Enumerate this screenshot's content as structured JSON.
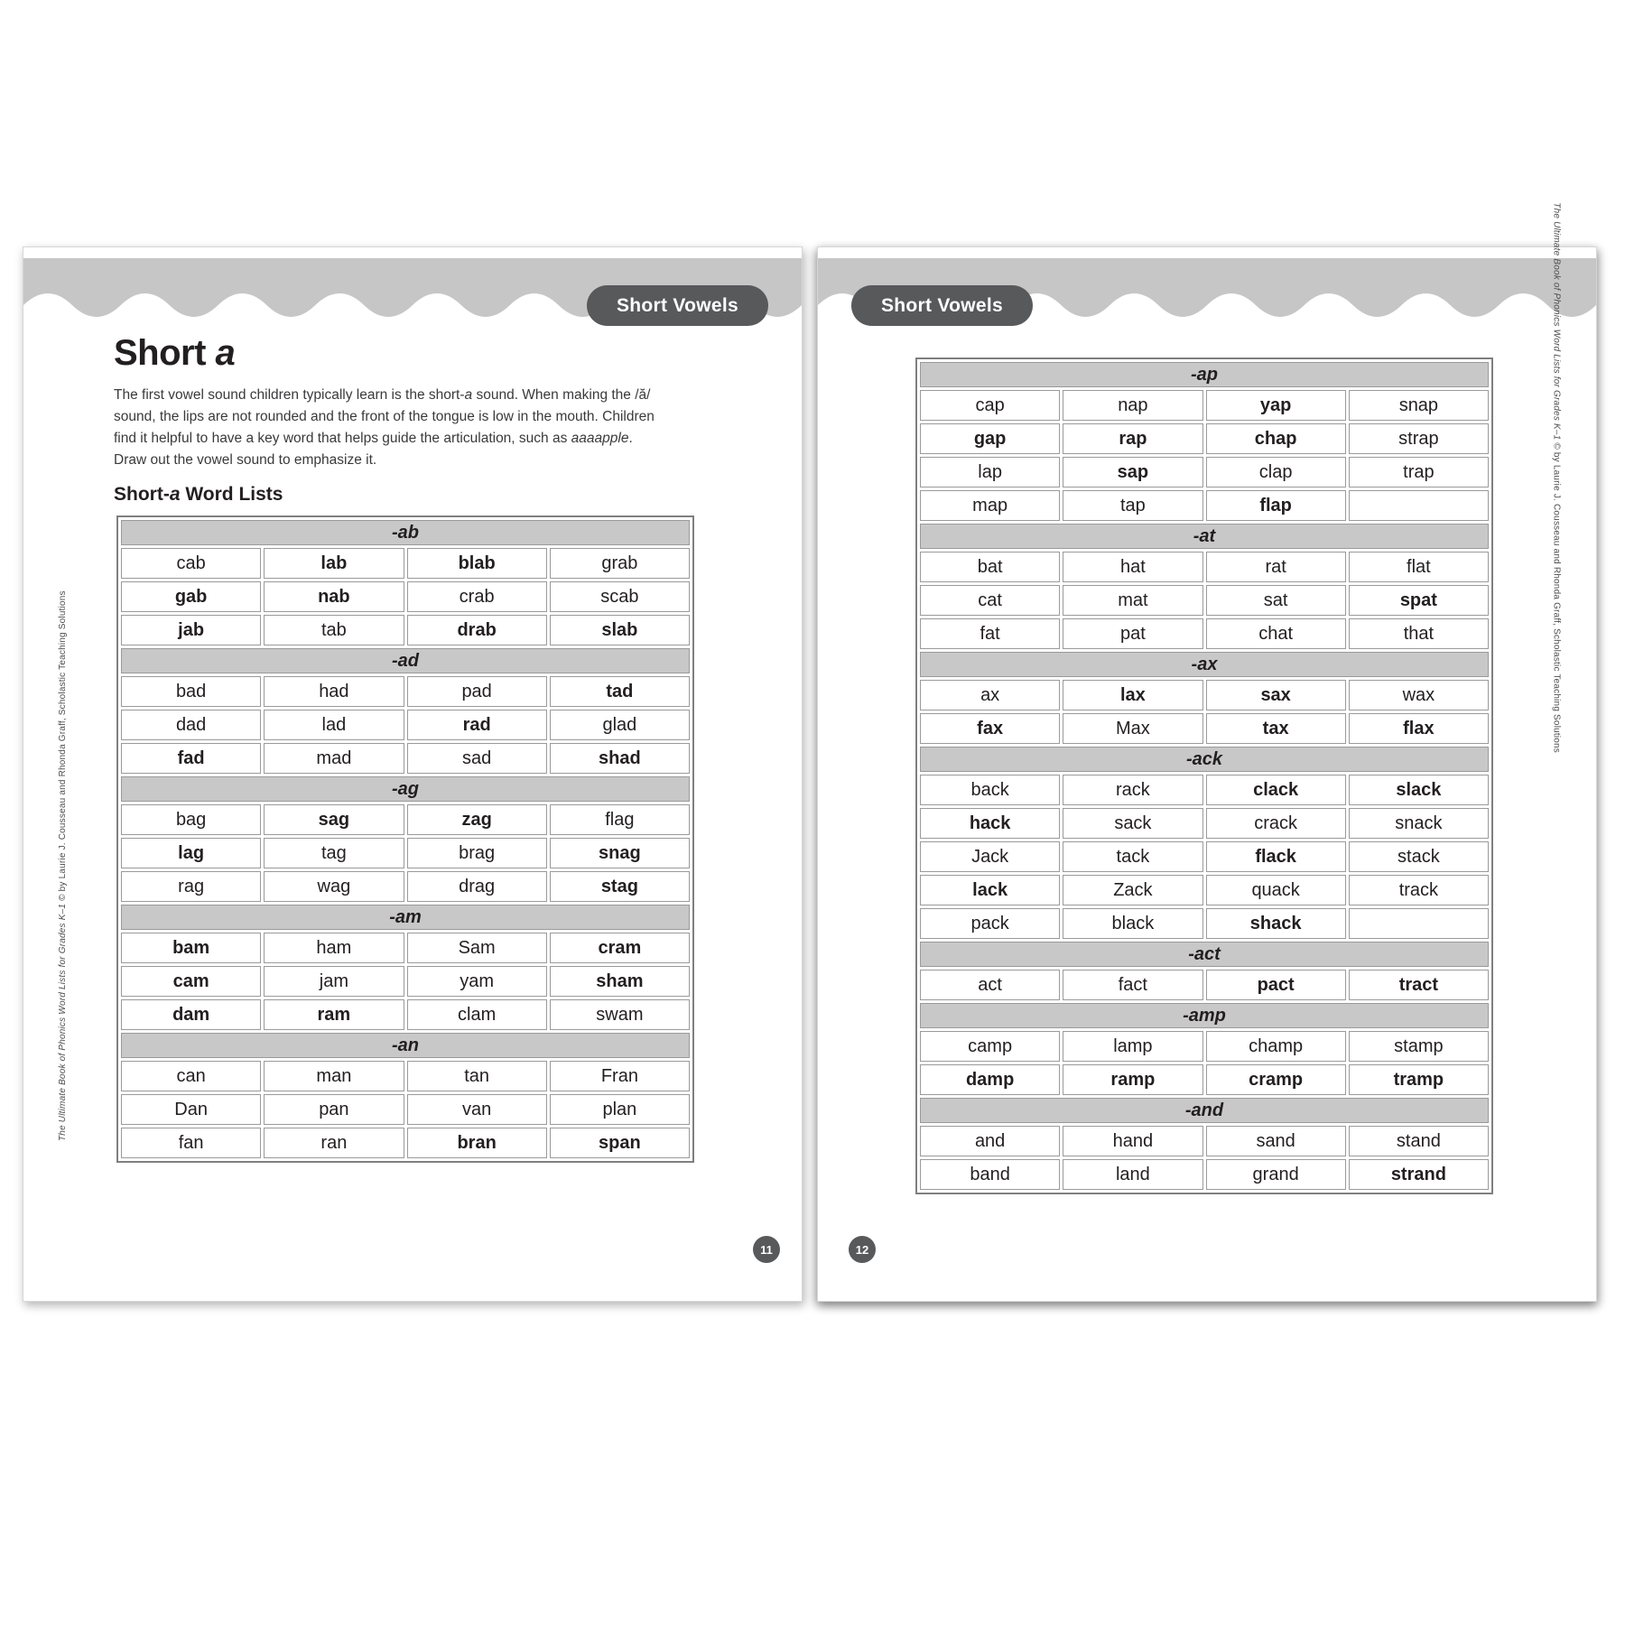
{
  "colors": {
    "band_gray": "#c6c6c6",
    "tab_dark_gray": "#58595b",
    "table_header_gray": "#c8c8c8",
    "table_border_gray": "#9a9a9a",
    "text_dark": "#231f20"
  },
  "left_page": {
    "tab_label": "Short Vowels",
    "page_number": "11",
    "heading": [
      {
        "t": "Short ",
        "i": 0
      },
      {
        "t": "a",
        "i": 1
      }
    ],
    "intro": [
      {
        "t": "The first vowel sound children typically learn is the short-",
        "i": 0
      },
      {
        "t": "a",
        "i": 1
      },
      {
        "t": " sound. When making the /ă/",
        "i": 0
      },
      {
        "br": true
      },
      {
        "t": "sound, the lips are not rounded and the front of the tongue is low in the mouth. Children",
        "i": 0
      },
      {
        "br": true
      },
      {
        "t": "find it helpful to have a key word that helps guide the articulation, such as ",
        "i": 0
      },
      {
        "t": "aaaapple",
        "i": 1
      },
      {
        "t": ".",
        "i": 0
      },
      {
        "br": true
      },
      {
        "t": "Draw out the vowel sound to emphasize it.",
        "i": 0
      }
    ],
    "subheading": [
      {
        "t": "Short-",
        "i": 0
      },
      {
        "t": "a",
        "i": 1
      },
      {
        "t": " Word Lists",
        "i": 0
      }
    ],
    "table": {
      "sections": [
        {
          "label": "-ab",
          "rows": [
            [
              "cab",
              "*lab",
              "*blab",
              "grab"
            ],
            [
              "*gab",
              "*nab",
              "crab",
              "scab"
            ],
            [
              "*jab",
              "tab",
              "*drab",
              "*slab"
            ]
          ]
        },
        {
          "label": "-ad",
          "rows": [
            [
              "bad",
              "had",
              "pad",
              "*tad"
            ],
            [
              "dad",
              "lad",
              "*rad",
              "glad"
            ],
            [
              "*fad",
              "mad",
              "sad",
              "*shad"
            ]
          ]
        },
        {
          "label": "-ag",
          "rows": [
            [
              "bag",
              "*sag",
              "*zag",
              "flag"
            ],
            [
              "*lag",
              "tag",
              "brag",
              "*snag"
            ],
            [
              "rag",
              "wag",
              "drag",
              "*stag"
            ]
          ]
        },
        {
          "label": "-am",
          "rows": [
            [
              "*bam",
              "ham",
              "Sam",
              "*cram"
            ],
            [
              "*cam",
              "jam",
              "yam",
              "*sham"
            ],
            [
              "*dam",
              "*ram",
              "clam",
              "swam"
            ]
          ]
        },
        {
          "label": "-an",
          "rows": [
            [
              "can",
              "man",
              "tan",
              "Fran"
            ],
            [
              "Dan",
              "pan",
              "van",
              "plan"
            ],
            [
              "fan",
              "ran",
              "*bran",
              "*span"
            ]
          ]
        }
      ]
    },
    "sidebar": [
      {
        "t": "The Ultimate Book of Phonics Word Lists for Grades K–1 ",
        "i": 1
      },
      {
        "t": "© by Laurie J. Cousseau and Rhonda Graff, Scholastic Teaching Solutions",
        "i": 0
      }
    ]
  },
  "right_page": {
    "tab_label": "Short Vowels",
    "page_number": "12",
    "table": {
      "sections": [
        {
          "label": "-ap",
          "rows": [
            [
              "cap",
              "nap",
              "*yap",
              "snap"
            ],
            [
              "*gap",
              "*rap",
              "*chap",
              "strap"
            ],
            [
              "lap",
              "*sap",
              "clap",
              "trap"
            ],
            [
              "map",
              "tap",
              "*flap",
              ""
            ]
          ]
        },
        {
          "label": "-at",
          "rows": [
            [
              "bat",
              "hat",
              "rat",
              "flat"
            ],
            [
              "cat",
              "mat",
              "sat",
              "*spat"
            ],
            [
              "fat",
              "pat",
              "chat",
              "that"
            ]
          ]
        },
        {
          "label": "-ax",
          "rows": [
            [
              "ax",
              "*lax",
              "*sax",
              "wax"
            ],
            [
              "*fax",
              "Max",
              "*tax",
              "*flax"
            ]
          ]
        },
        {
          "label": "-ack",
          "rows": [
            [
              "back",
              "rack",
              "*clack",
              "*slack"
            ],
            [
              "*hack",
              "sack",
              "crack",
              "snack"
            ],
            [
              "Jack",
              "tack",
              "*flack",
              "stack"
            ],
            [
              "*lack",
              "Zack",
              "quack",
              "track"
            ],
            [
              "pack",
              "black",
              "*shack",
              ""
            ]
          ]
        },
        {
          "label": "-act",
          "rows": [
            [
              "act",
              "fact",
              "*pact",
              "*tract"
            ]
          ]
        },
        {
          "label": "-amp",
          "rows": [
            [
              "camp",
              "lamp",
              "champ",
              "stamp"
            ],
            [
              "*damp",
              "*ramp",
              "*cramp",
              "*tramp"
            ]
          ]
        },
        {
          "label": "-and",
          "rows": [
            [
              "and",
              "hand",
              "sand",
              "stand"
            ],
            [
              "band",
              "land",
              "grand",
              "*strand"
            ]
          ]
        }
      ]
    },
    "sidebar": [
      {
        "t": "The Ultimate Book of Phonics Word Lists for Grades K–1 ",
        "i": 1
      },
      {
        "t": "© by Laurie J. Cousseau and Rhonda Graff, Scholastic Teaching Solutions",
        "i": 0
      }
    ]
  }
}
